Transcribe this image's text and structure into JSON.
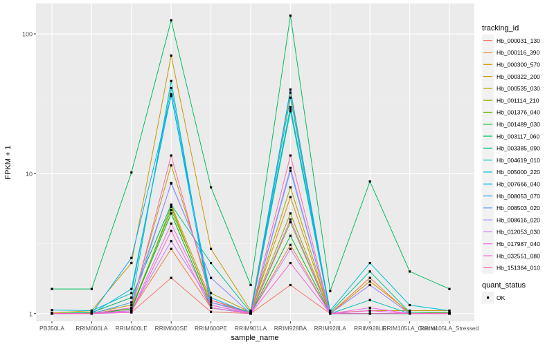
{
  "chart_data": {
    "type": "line",
    "title": "",
    "xlabel": "sample_name",
    "ylabel": "FPKM + 1",
    "y_scale": "log10",
    "ylim": [
      0.88,
      165
    ],
    "y_ticks": [
      {
        "value": 1,
        "label": "1"
      },
      {
        "value": 10,
        "label": "10"
      },
      {
        "value": 100,
        "label": "100"
      }
    ],
    "grid": true,
    "background": "#EBEBEB",
    "categories": [
      "PB350LA",
      "RRIM600LA",
      "RRIM600LE",
      "RRIM600SE",
      "RRIM600PE",
      "RRIM901LA",
      "RRIM928BA",
      "RRIM928LA",
      "RRIM928LE",
      "RRIM105LA_Control",
      "RRIM105LA_Stressed"
    ],
    "category_labels": [
      "PB350LA",
      "RRIM600LA",
      "RRIM600LE",
      "RRIM600SE",
      "RRIM600PE",
      "RRIM901LA",
      "RRIM928BA",
      "RRIM928LA",
      "RRIM928LE",
      "RRIM105LA_Control",
      "RRIM105LA_Stressed"
    ],
    "legend": {
      "position": "right",
      "color_title": "tracking_id",
      "shape_title": "quant_status",
      "shape_items": [
        {
          "label": "OK",
          "shape": "square",
          "color": "#000000"
        }
      ]
    },
    "series": [
      {
        "name": "Hb_000031_130",
        "color": "#F8766D",
        "values": [
          1.0,
          1.0,
          1.02,
          1.8,
          1.03,
          1.0,
          1.6,
          1.0,
          1.0,
          1.0,
          1.0
        ]
      },
      {
        "name": "Hb_000116_390",
        "color": "#EC8239",
        "values": [
          1.0,
          1.01,
          1.05,
          2.9,
          1.1,
          1.0,
          3.1,
          1.0,
          1.8,
          1.0,
          1.0
        ]
      },
      {
        "name": "Hb_000300_570",
        "color": "#DB8E00",
        "values": [
          1.0,
          1.02,
          1.3,
          6.0,
          1.25,
          1.02,
          6.8,
          1.0,
          1.7,
          1.02,
          1.01
        ]
      },
      {
        "name": "Hb_000322_200",
        "color": "#C79800",
        "values": [
          1.01,
          1.05,
          2.3,
          70.0,
          2.9,
          1.05,
          38.0,
          1.01,
          1.05,
          1.05,
          1.05
        ]
      },
      {
        "name": "Hb_000535_030",
        "color": "#AEA200",
        "values": [
          1.0,
          1.01,
          1.15,
          11.5,
          1.4,
          1.02,
          8.0,
          1.0,
          1.0,
          1.0,
          1.0
        ]
      },
      {
        "name": "Hb_001114_210",
        "color": "#8FAA00",
        "values": [
          1.0,
          1.0,
          1.1,
          5.5,
          1.2,
          1.01,
          5.2,
          1.0,
          1.0,
          1.0,
          1.0
        ]
      },
      {
        "name": "Hb_001376_040",
        "color": "#64B200",
        "values": [
          1.0,
          1.0,
          1.05,
          5.8,
          1.15,
          1.0,
          4.5,
          1.0,
          1.0,
          1.0,
          1.0
        ]
      },
      {
        "name": "Hb_001489_030",
        "color": "#00B81B",
        "values": [
          1.0,
          1.0,
          1.08,
          5.2,
          1.1,
          1.0,
          3.6,
          1.0,
          1.0,
          1.0,
          1.0
        ]
      },
      {
        "name": "Hb_003117_060",
        "color": "#00BD5C",
        "values": [
          1.5,
          1.5,
          10.2,
          125.0,
          8.0,
          1.6,
          135.0,
          1.45,
          8.8,
          2.0,
          1.5
        ]
      },
      {
        "name": "Hb_003385_090",
        "color": "#00C08E",
        "values": [
          1.0,
          1.02,
          1.3,
          6.0,
          2.3,
          1.02,
          30.0,
          1.02,
          2.0,
          1.02,
          1.02
        ]
      },
      {
        "name": "Hb_004619_010",
        "color": "#00C1B2",
        "values": [
          1.0,
          1.0,
          1.2,
          46.0,
          1.1,
          1.0,
          28.0,
          1.0,
          1.25,
          1.0,
          1.0
        ]
      },
      {
        "name": "Hb_005000_220",
        "color": "#00BFD0",
        "values": [
          1.06,
          1.05,
          1.4,
          41.0,
          1.2,
          1.03,
          29.0,
          1.05,
          2.3,
          1.15,
          1.05
        ]
      },
      {
        "name": "Hb_007666_040",
        "color": "#00B8E7",
        "values": [
          1.0,
          1.0,
          1.5,
          37.0,
          1.1,
          1.0,
          35.0,
          1.0,
          1.0,
          1.0,
          1.0
        ]
      },
      {
        "name": "Hb_008053_070",
        "color": "#00ABFD",
        "values": [
          1.0,
          1.0,
          2.5,
          36.0,
          1.3,
          1.0,
          40.0,
          1.0,
          1.0,
          1.0,
          1.0
        ]
      },
      {
        "name": "Hb_008503_020",
        "color": "#619CFF",
        "values": [
          1.0,
          1.0,
          1.2,
          8.5,
          1.8,
          1.0,
          10.5,
          1.0,
          1.6,
          1.0,
          1.0
        ]
      },
      {
        "name": "Hb_008616_020",
        "color": "#A58AFF",
        "values": [
          1.0,
          1.0,
          1.1,
          8.6,
          1.8,
          1.0,
          11.0,
          1.0,
          1.6,
          1.0,
          1.0
        ]
      },
      {
        "name": "Hb_012053_030",
        "color": "#CF78FF",
        "values": [
          1.0,
          1.0,
          1.05,
          3.3,
          1.2,
          1.0,
          2.9,
          1.0,
          1.05,
          1.0,
          1.0
        ]
      },
      {
        "name": "Hb_017987_040",
        "color": "#EA6BF0",
        "values": [
          1.0,
          1.0,
          1.03,
          4.4,
          1.15,
          1.0,
          4.7,
          1.0,
          1.1,
          1.0,
          1.0
        ]
      },
      {
        "name": "Hb_032551_080",
        "color": "#FA62D5",
        "values": [
          1.0,
          1.0,
          1.02,
          3.9,
          1.1,
          1.0,
          2.3,
          1.0,
          1.05,
          1.0,
          1.0
        ]
      },
      {
        "name": "Hb_151364_010",
        "color": "#FF65AC",
        "values": [
          1.0,
          1.0,
          1.1,
          13.5,
          1.25,
          1.0,
          13.5,
          1.0,
          1.0,
          1.0,
          1.0
        ]
      }
    ]
  }
}
